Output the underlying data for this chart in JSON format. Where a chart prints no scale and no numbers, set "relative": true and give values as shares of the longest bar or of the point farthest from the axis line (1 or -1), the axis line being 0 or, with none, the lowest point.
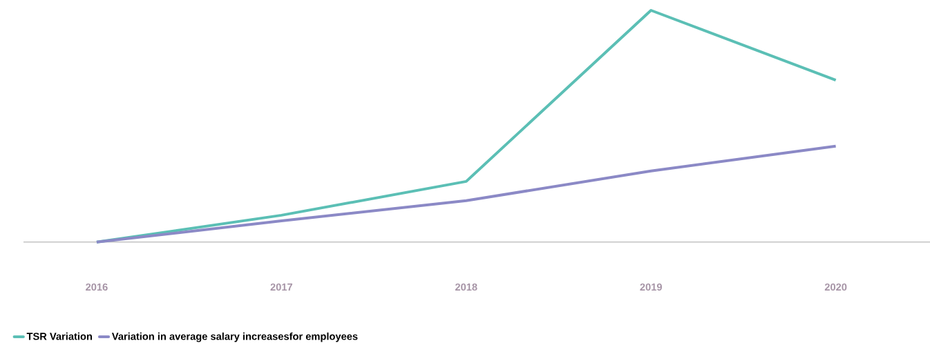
{
  "chart_data": {
    "type": "line",
    "relative": true,
    "categories": [
      "2016",
      "2017",
      "2018",
      "2019",
      "2020"
    ],
    "series": [
      {
        "name": "TSR Variation",
        "color": "#5bbfb5",
        "values": [
          0,
          0.116,
          0.262,
          1,
          0.699
        ]
      },
      {
        "name": "Variation in average salary increasesfor employees",
        "color": "#8b89c6",
        "values": [
          0,
          0.092,
          0.179,
          0.307,
          0.414
        ]
      }
    ],
    "legend": "bottom left"
  }
}
